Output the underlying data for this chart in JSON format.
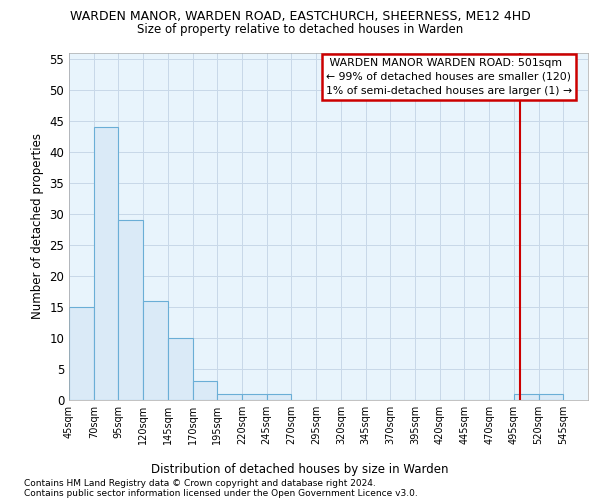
{
  "title": "WARDEN MANOR, WARDEN ROAD, EASTCHURCH, SHEERNESS, ME12 4HD",
  "subtitle": "Size of property relative to detached houses in Warden",
  "xlabel": "Distribution of detached houses by size in Warden",
  "ylabel": "Number of detached properties",
  "footer1": "Contains HM Land Registry data © Crown copyright and database right 2024.",
  "footer2": "Contains public sector information licensed under the Open Government Licence v3.0.",
  "bin_starts": [
    45,
    70,
    95,
    120,
    145,
    170,
    195,
    220,
    245,
    270,
    295,
    320,
    345,
    370,
    395,
    420,
    445,
    470,
    495,
    520
  ],
  "bin_width": 25,
  "bar_heights": [
    15,
    44,
    29,
    16,
    10,
    3,
    1,
    1,
    1,
    0,
    0,
    0,
    0,
    0,
    0,
    0,
    0,
    0,
    1,
    1
  ],
  "bar_color": "#daeaf7",
  "bar_edge_color": "#6aaed6",
  "bar_edge_width": 0.8,
  "grid_color": "#c8d8e8",
  "bg_color": "#e8f4fc",
  "property_size": 501,
  "property_line_color": "#cc0000",
  "box_text_line1": " WARDEN MANOR WARDEN ROAD: 501sqm",
  "box_text_line2": "← 99% of detached houses are smaller (120)",
  "box_text_line3": "1% of semi-detached houses are larger (1) →",
  "box_edge_color": "#cc0000",
  "ylim": [
    0,
    56
  ],
  "yticks": [
    0,
    5,
    10,
    15,
    20,
    25,
    30,
    35,
    40,
    45,
    50,
    55
  ],
  "tick_labels": [
    "45sqm",
    "70sqm",
    "95sqm",
    "120sqm",
    "145sqm",
    "170sqm",
    "195sqm",
    "220sqm",
    "245sqm",
    "270sqm",
    "295sqm",
    "320sqm",
    "345sqm",
    "370sqm",
    "395sqm",
    "420sqm",
    "445sqm",
    "470sqm",
    "495sqm",
    "520sqm",
    "545sqm"
  ]
}
